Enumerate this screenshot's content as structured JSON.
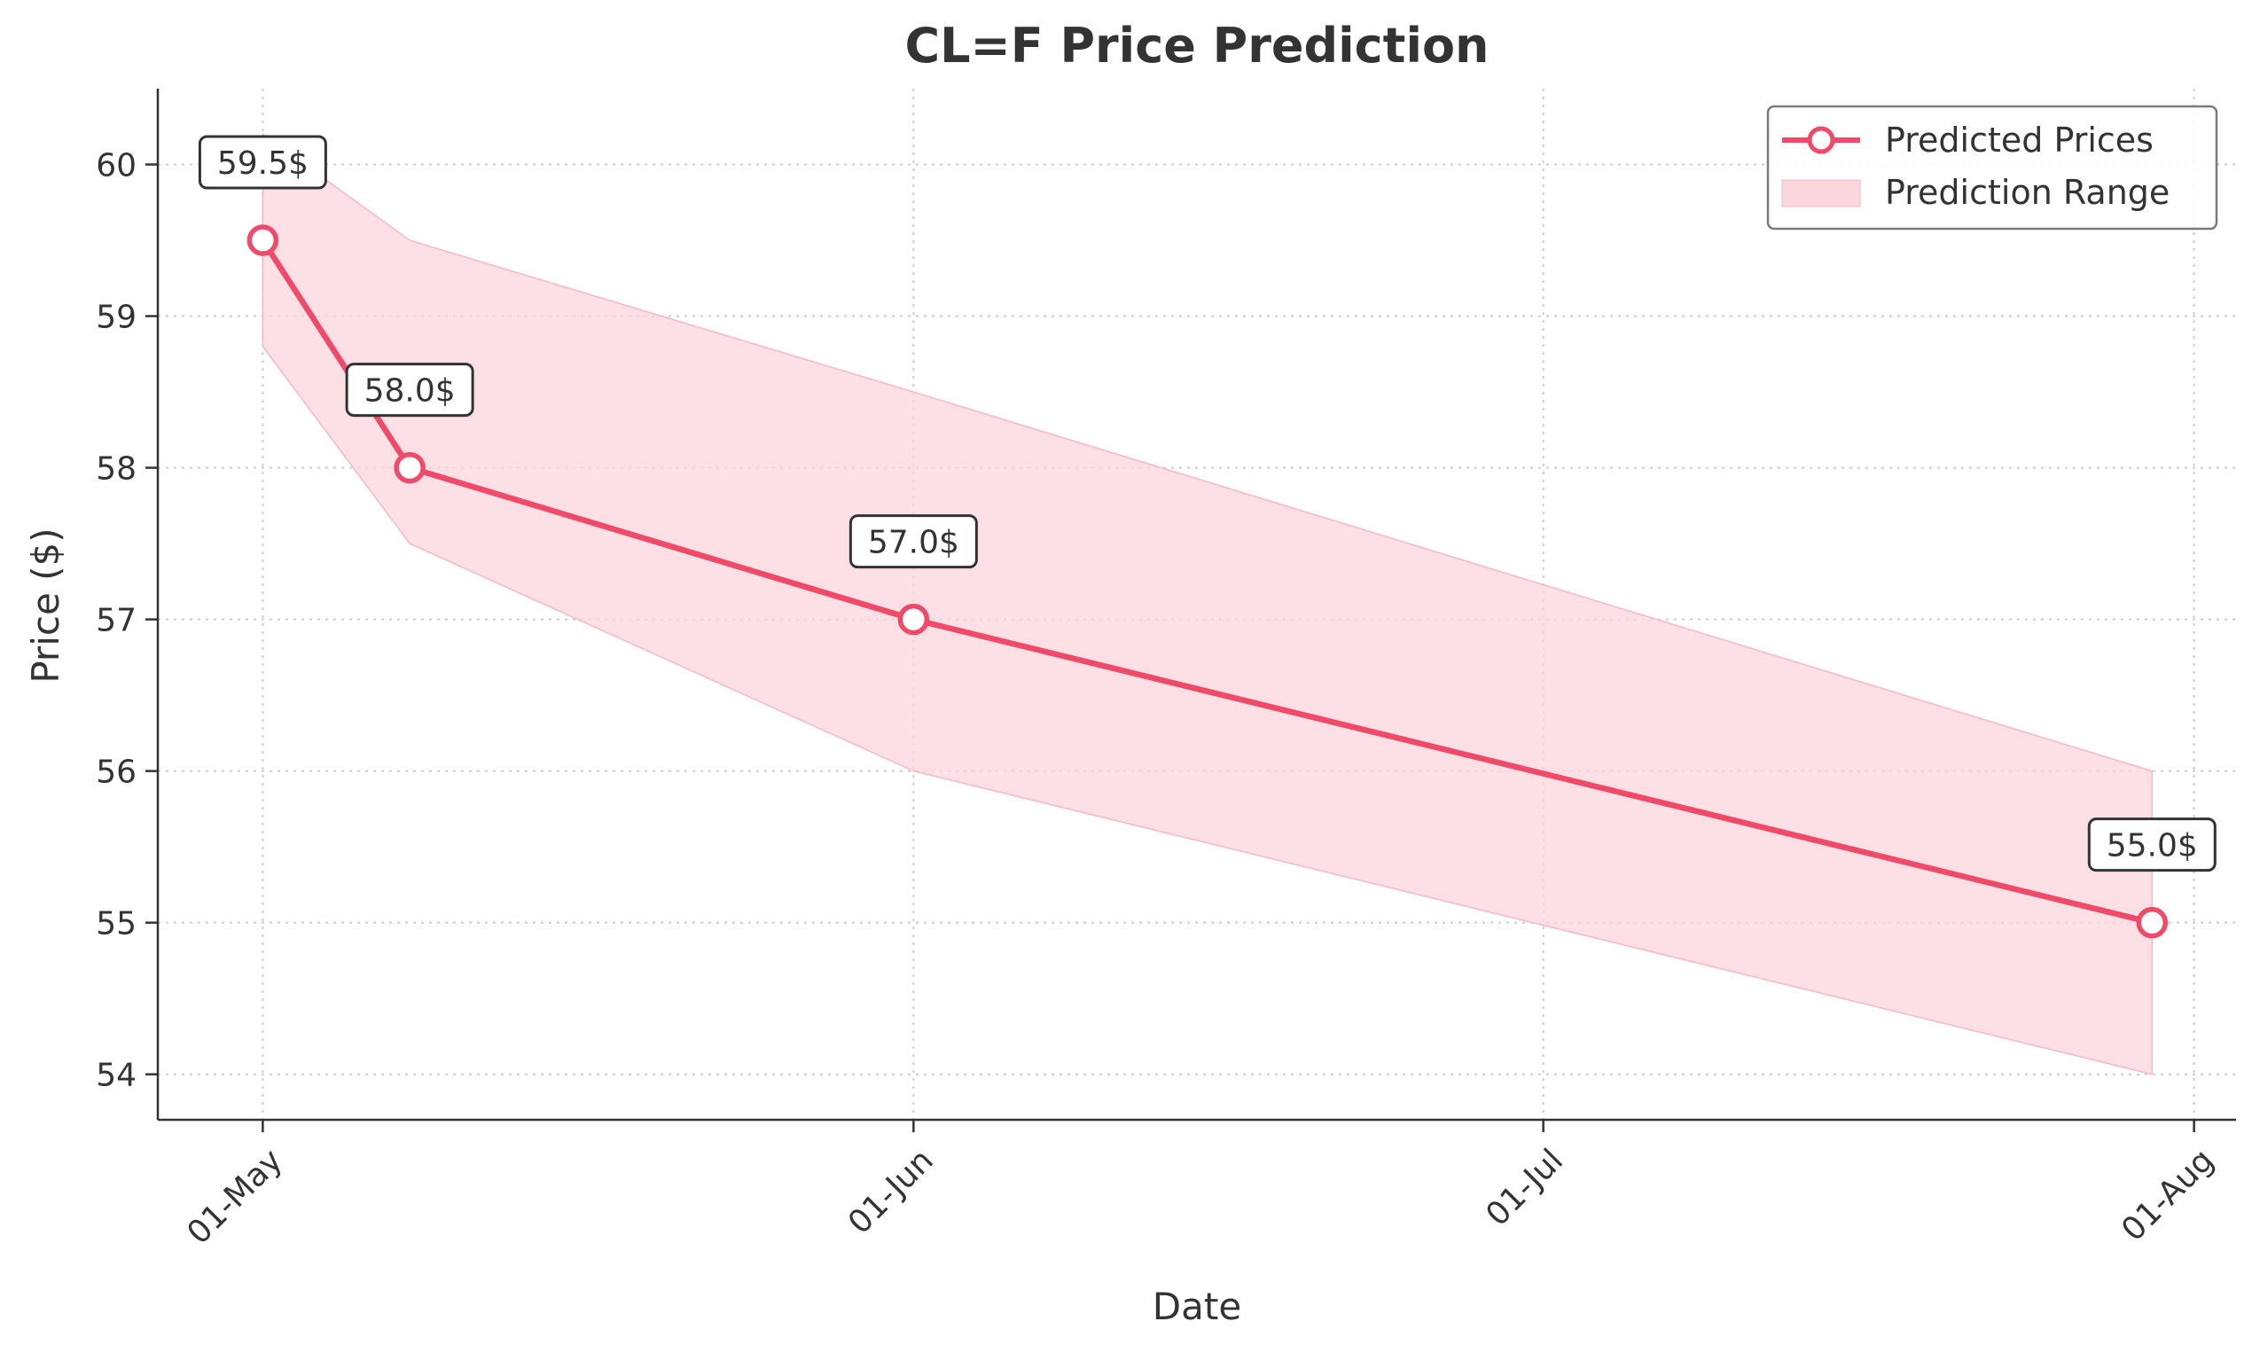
{
  "chart_data": {
    "type": "line",
    "title": "CL=F Price Prediction",
    "xlabel": "Date",
    "ylabel": "Price ($)",
    "x_ticks": [
      {
        "date": "2025-05-01",
        "label": "01-May"
      },
      {
        "date": "2025-06-01",
        "label": "01-Jun"
      },
      {
        "date": "2025-07-01",
        "label": "01-Jul"
      },
      {
        "date": "2025-08-01",
        "label": "01-Aug"
      }
    ],
    "y_ticks": [
      54,
      55,
      56,
      57,
      58,
      59,
      60
    ],
    "xlim": [
      "2025-04-26",
      "2025-08-03"
    ],
    "ylim": [
      53.7,
      60.5
    ],
    "grid": true,
    "legend_position": "top-right",
    "series": [
      {
        "name": "Predicted Prices",
        "color": "#f04a68",
        "points": [
          {
            "date": "2025-05-01",
            "value": 59.5,
            "label": "59.5$"
          },
          {
            "date": "2025-05-08",
            "value": 58.0,
            "label": "58.0$"
          },
          {
            "date": "2025-06-01",
            "value": 57.0,
            "label": "57.0$"
          },
          {
            "date": "2025-07-30",
            "value": 55.0,
            "label": "55.0$"
          }
        ]
      },
      {
        "name": "Prediction Range",
        "color": "#fcd6dd",
        "points": [
          {
            "date": "2025-05-01",
            "low": 58.8,
            "high": 60.2
          },
          {
            "date": "2025-05-08",
            "low": 57.5,
            "high": 59.5
          },
          {
            "date": "2025-06-01",
            "low": 56.0,
            "high": 58.5
          },
          {
            "date": "2025-07-30",
            "low": 54.0,
            "high": 56.0
          }
        ]
      }
    ]
  }
}
